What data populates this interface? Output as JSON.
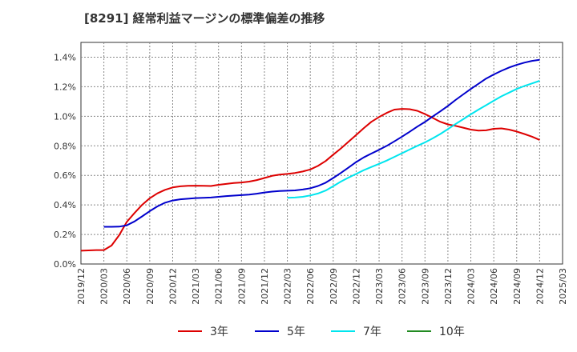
{
  "chart_data": {
    "type": "line",
    "title": "[8291]  経常利益マージンの標準偏差の推移",
    "xlabel": "",
    "ylabel": "",
    "x_ticks": [
      "2019/12",
      "2020/03",
      "2020/06",
      "2020/09",
      "2020/12",
      "2021/03",
      "2021/06",
      "2021/09",
      "2021/12",
      "2022/03",
      "2022/06",
      "2022/09",
      "2022/12",
      "2023/03",
      "2023/06",
      "2023/09",
      "2023/12",
      "2024/03",
      "2024/06",
      "2024/09",
      "2024/12",
      "2025/03"
    ],
    "y_ticks": [
      "0.0%",
      "0.2%",
      "0.4%",
      "0.6%",
      "0.8%",
      "1.0%",
      "1.2%",
      "1.4%"
    ],
    "ylim": [
      0,
      1.5
    ],
    "grid": true,
    "legend_position": "bottom",
    "series": [
      {
        "name": "3年",
        "color": "#dd0000",
        "x": [
          "2019/12",
          "2020/01",
          "2020/02",
          "2020/03",
          "2020/04",
          "2020/05",
          "2020/06",
          "2020/07",
          "2020/08",
          "2020/09",
          "2020/10",
          "2020/11",
          "2020/12",
          "2021/01",
          "2021/02",
          "2021/03",
          "2021/04",
          "2021/05",
          "2021/06",
          "2021/07",
          "2021/08",
          "2021/09",
          "2021/10",
          "2021/11",
          "2021/12",
          "2022/01",
          "2022/02",
          "2022/03",
          "2022/04",
          "2022/05",
          "2022/06",
          "2022/07",
          "2022/08",
          "2022/09",
          "2022/10",
          "2022/11",
          "2022/12",
          "2023/01",
          "2023/02",
          "2023/03",
          "2023/04",
          "2023/05",
          "2023/06",
          "2023/07",
          "2023/08",
          "2023/09",
          "2023/10",
          "2023/11",
          "2023/12",
          "2024/01",
          "2024/02",
          "2024/03",
          "2024/04",
          "2024/05",
          "2024/06",
          "2024/07",
          "2024/08",
          "2024/09",
          "2024/10",
          "2024/11",
          "2024/12"
        ],
        "values": [
          0.09,
          0.092,
          0.094,
          0.094,
          0.125,
          0.195,
          0.285,
          0.345,
          0.4,
          0.445,
          0.478,
          0.502,
          0.518,
          0.526,
          0.529,
          0.53,
          0.529,
          0.528,
          0.536,
          0.542,
          0.548,
          0.552,
          0.558,
          0.568,
          0.582,
          0.597,
          0.605,
          0.61,
          0.616,
          0.626,
          0.64,
          0.664,
          0.697,
          0.74,
          0.782,
          0.828,
          0.873,
          0.92,
          0.963,
          0.995,
          1.023,
          1.045,
          1.05,
          1.048,
          1.037,
          1.015,
          0.99,
          0.963,
          0.945,
          0.935,
          0.923,
          0.91,
          0.903,
          0.905,
          0.915,
          0.918,
          0.91,
          0.897,
          0.88,
          0.862,
          0.84
        ]
      },
      {
        "name": "5年",
        "color": "#0000cc",
        "x": [
          "2020/03",
          "2020/04",
          "2020/05",
          "2020/06",
          "2020/07",
          "2020/08",
          "2020/09",
          "2020/10",
          "2020/11",
          "2020/12",
          "2021/01",
          "2021/02",
          "2021/03",
          "2021/04",
          "2021/05",
          "2021/06",
          "2021/07",
          "2021/08",
          "2021/09",
          "2021/10",
          "2021/11",
          "2021/12",
          "2022/01",
          "2022/02",
          "2022/03",
          "2022/04",
          "2022/05",
          "2022/06",
          "2022/07",
          "2022/08",
          "2022/09",
          "2022/10",
          "2022/11",
          "2022/12",
          "2023/01",
          "2023/02",
          "2023/03",
          "2023/04",
          "2023/05",
          "2023/06",
          "2023/07",
          "2023/08",
          "2023/09",
          "2023/10",
          "2023/11",
          "2023/12",
          "2024/01",
          "2024/02",
          "2024/03",
          "2024/04",
          "2024/05",
          "2024/06",
          "2024/07",
          "2024/08",
          "2024/09",
          "2024/10",
          "2024/11",
          "2024/12"
        ],
        "values": [
          0.252,
          0.252,
          0.253,
          0.262,
          0.288,
          0.322,
          0.358,
          0.39,
          0.415,
          0.43,
          0.438,
          0.442,
          0.446,
          0.448,
          0.45,
          0.455,
          0.46,
          0.463,
          0.466,
          0.47,
          0.476,
          0.484,
          0.49,
          0.494,
          0.496,
          0.498,
          0.504,
          0.513,
          0.528,
          0.55,
          0.582,
          0.616,
          0.653,
          0.69,
          0.722,
          0.748,
          0.773,
          0.8,
          0.83,
          0.862,
          0.895,
          0.93,
          0.962,
          0.998,
          1.033,
          1.07,
          1.11,
          1.148,
          1.185,
          1.22,
          1.255,
          1.283,
          1.308,
          1.33,
          1.348,
          1.363,
          1.375,
          1.382
        ]
      },
      {
        "name": "7年",
        "color": "#00e5ee",
        "x": [
          "2022/03",
          "2022/04",
          "2022/05",
          "2022/06",
          "2022/07",
          "2022/08",
          "2022/09",
          "2022/10",
          "2022/11",
          "2022/12",
          "2023/01",
          "2023/02",
          "2023/03",
          "2023/04",
          "2023/05",
          "2023/06",
          "2023/07",
          "2023/08",
          "2023/09",
          "2023/10",
          "2023/11",
          "2023/12",
          "2024/01",
          "2024/02",
          "2024/03",
          "2024/04",
          "2024/05",
          "2024/06",
          "2024/07",
          "2024/08",
          "2024/09",
          "2024/10",
          "2024/11",
          "2024/12"
        ],
        "values": [
          0.448,
          0.45,
          0.455,
          0.464,
          0.477,
          0.497,
          0.527,
          0.558,
          0.585,
          0.61,
          0.635,
          0.657,
          0.678,
          0.7,
          0.725,
          0.75,
          0.775,
          0.8,
          0.823,
          0.85,
          0.88,
          0.913,
          0.947,
          0.98,
          1.013,
          1.045,
          1.075,
          1.105,
          1.135,
          1.16,
          1.185,
          1.205,
          1.222,
          1.24
        ]
      },
      {
        "name": "10年",
        "color": "#228b22",
        "x": [],
        "values": []
      }
    ]
  }
}
